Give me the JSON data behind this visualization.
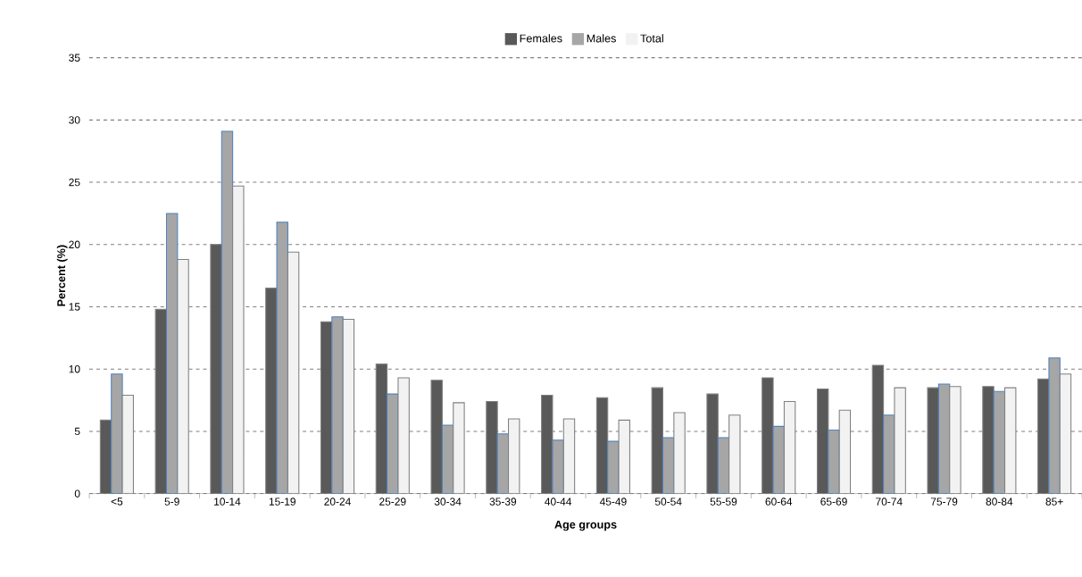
{
  "chart_data": {
    "type": "bar",
    "xlabel": "Age groups",
    "ylabel": "Percent (%)",
    "categories": [
      "<5",
      "5-9",
      "10-14",
      "15-19",
      "20-24",
      "25-29",
      "30-34",
      "35-39",
      "40-44",
      "45-49",
      "50-54",
      "55-59",
      "60-64",
      "65-69",
      "70-74",
      "75-79",
      "80-84",
      "85+"
    ],
    "series": [
      {
        "name": "Females",
        "color": "#595959",
        "values": [
          5.9,
          14.8,
          20.0,
          16.5,
          13.8,
          10.4,
          9.1,
          7.4,
          7.9,
          7.7,
          8.5,
          8.0,
          9.3,
          8.4,
          10.3,
          8.5,
          8.6,
          9.2
        ]
      },
      {
        "name": "Males",
        "color": "#a6a6a6",
        "values": [
          9.6,
          22.5,
          29.1,
          21.8,
          14.2,
          8.0,
          5.5,
          4.8,
          4.3,
          4.2,
          4.5,
          4.5,
          5.4,
          5.1,
          6.3,
          8.8,
          8.2,
          10.9
        ]
      },
      {
        "name": "Total",
        "color": "#f2f2f2",
        "values": [
          7.9,
          18.8,
          24.7,
          19.4,
          14.0,
          9.3,
          7.3,
          6.0,
          6.0,
          5.9,
          6.5,
          6.3,
          7.4,
          6.7,
          8.5,
          8.6,
          8.5,
          9.6
        ]
      }
    ],
    "ylim": [
      0,
      35
    ],
    "yticks": [
      0,
      5,
      10,
      15,
      20,
      25,
      30,
      35
    ],
    "grid": "y",
    "legend": "top"
  }
}
